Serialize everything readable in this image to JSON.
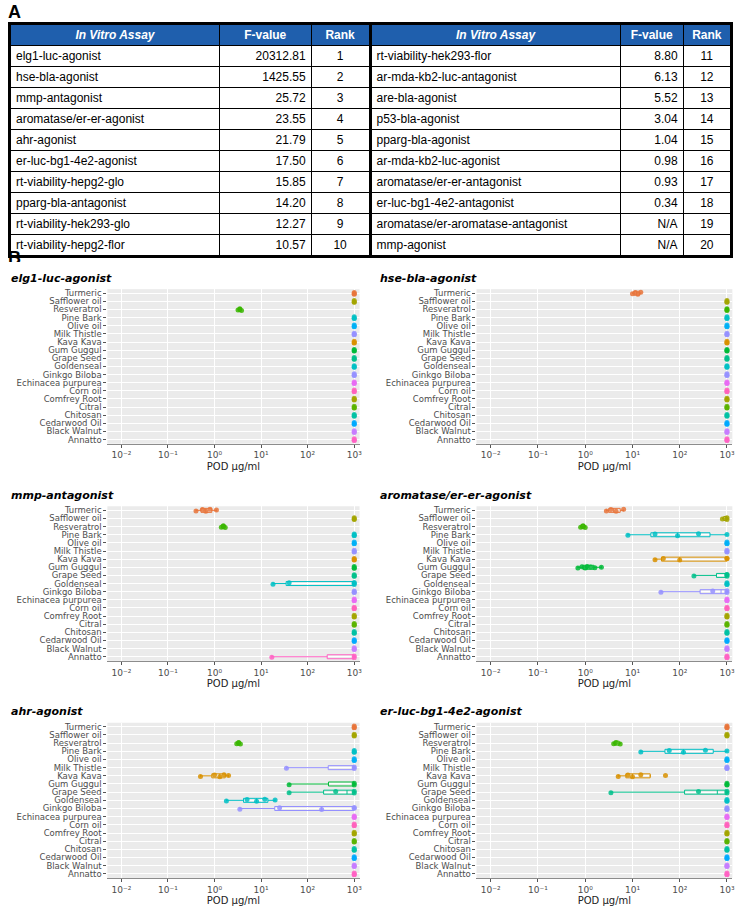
{
  "panel_A": {
    "label": "A",
    "columns": [
      "In Vitro Assay",
      "F-value",
      "Rank"
    ],
    "rows": [
      [
        "elg1-luc-agonist",
        20312.81,
        1
      ],
      [
        "hse-bla-agonist",
        1425.55,
        2
      ],
      [
        "mmp-antagonist",
        25.72,
        3
      ],
      [
        "aromatase/er-er-agonist",
        23.55,
        4
      ],
      [
        "ahr-agonist",
        21.79,
        5
      ],
      [
        "er-luc-bg1-4e2-agonist",
        17.5,
        6
      ],
      [
        "rt-viability-hepg2-glo",
        15.85,
        7
      ],
      [
        "pparg-bla-antagonist",
        14.2,
        8
      ],
      [
        "rt-viability-hek293-glo",
        12.27,
        9
      ],
      [
        "rt-viability-hepg2-flor",
        10.57,
        10
      ],
      [
        "rt-viability-hek293-flor",
        8.8,
        11
      ],
      [
        "ar-mda-kb2-luc-antagonist",
        6.13,
        12
      ],
      [
        "are-bla-agonist",
        5.52,
        13
      ],
      [
        "p53-bla-agonist",
        3.04,
        14
      ],
      [
        "pparg-bla-agonist",
        1.04,
        15
      ],
      [
        "ar-mda-kb2-luc-agonist",
        0.98,
        16
      ],
      [
        "aromatase/er-er-antagonist",
        0.93,
        17
      ],
      [
        "er-luc-bg1-4e2-antagonist",
        0.34,
        18
      ],
      [
        "aromatase/er-aromatase-antagonist",
        "N/A",
        19
      ],
      [
        "mmp-agonist",
        "N/A",
        20
      ]
    ]
  },
  "panel_B_label": "B",
  "chart_data": [
    {
      "type": "box",
      "title": "elg1-luc-agonist",
      "xlabel": "POD µg/ml",
      "log": "x",
      "grid": true,
      "marker": "circle",
      "xlim": [
        0.005,
        1300
      ],
      "xticks": [
        {
          "value": 0.01,
          "label": "10⁻²"
        },
        {
          "value": 0.1,
          "label": "10⁻¹"
        },
        {
          "value": 1,
          "label": "10⁰"
        },
        {
          "value": 10,
          "label": "10¹"
        },
        {
          "value": 100,
          "label": "10²"
        },
        {
          "value": 1000,
          "label": "10³"
        }
      ],
      "categories": [
        "Turmeric",
        "Safflower oil",
        "Resveratrol",
        "Pine Bark",
        "Olive oil",
        "Milk Thistle",
        "Kava Kava",
        "Gum Guggul",
        "Grape Seed",
        "Goldenseal",
        "Ginkgo Biloba",
        "Echinacea purpurea",
        "Corn oil",
        "Comfrey Root",
        "Citral",
        "Chitosan",
        "Cedarwood Oil",
        "Black Walnut",
        "Annatto"
      ],
      "colors": [
        "#E8743B",
        "#A3A500",
        "#39B600",
        "#00BFC4",
        "#00B0F6",
        "#9590FF",
        "#D89000",
        "#00BA38",
        "#00C08B",
        "#00BFC4",
        "#9590FF",
        "#E76BF3",
        "#FF62BC",
        "#A3A500",
        "#5BB300",
        "#00C1A3",
        "#00A9FF",
        "#C77CFF",
        "#FF61C3"
      ],
      "values": [
        [
          1000,
          1000,
          1000
        ],
        [
          1000,
          1000,
          1000
        ],
        [
          3.2,
          3.5,
          3.8
        ],
        [
          1000,
          1000,
          1000
        ],
        [
          1000,
          1000,
          1000
        ],
        [
          1000,
          1000,
          1000
        ],
        [
          1000,
          1000,
          1000
        ],
        [
          1000,
          1000,
          1000
        ],
        [
          1000,
          1000,
          1000
        ],
        [
          1000,
          1000,
          1000
        ],
        [
          1000,
          1000,
          1000
        ],
        [
          1000,
          1000,
          1000
        ],
        [
          1000,
          1000,
          1000
        ],
        [
          1000,
          1000,
          1000
        ],
        [
          1000,
          1000,
          1000
        ],
        [
          1000,
          1000,
          1000
        ],
        [
          1000,
          1000,
          1000
        ],
        [
          1000,
          1000,
          1000
        ],
        [
          1000,
          1000,
          1000
        ]
      ]
    },
    {
      "type": "box",
      "title": "hse-bla-agonist",
      "xlabel": "POD µg/ml",
      "log": "x",
      "grid": true,
      "marker": "circle",
      "xlim": [
        0.005,
        1300
      ],
      "xticks": [
        {
          "value": 0.01,
          "label": "10⁻²"
        },
        {
          "value": 0.1,
          "label": "10⁻¹"
        },
        {
          "value": 1,
          "label": "10⁰"
        },
        {
          "value": 10,
          "label": "10¹"
        },
        {
          "value": 100,
          "label": "10²"
        },
        {
          "value": 1000,
          "label": "10³"
        }
      ],
      "categories": [
        "Turmeric",
        "Safflower oil",
        "Resveratrol",
        "Pine Bark",
        "Olive oil",
        "Milk Thistle",
        "Kava Kava",
        "Gum Guggul",
        "Grape Seed",
        "Goldenseal",
        "Ginkgo Biloba",
        "Echinacea purpurea",
        "Corn oil",
        "Comfrey Root",
        "Citral",
        "Chitosan",
        "Cedarwood Oil",
        "Black Walnut",
        "Annatto"
      ],
      "colors": [
        "#E8743B",
        "#A3A500",
        "#39B600",
        "#00BFC4",
        "#00B0F6",
        "#9590FF",
        "#D89000",
        "#00BA38",
        "#00C08B",
        "#00BFC4",
        "#9590FF",
        "#E76BF3",
        "#FF62BC",
        "#A3A500",
        "#5BB300",
        "#00C1A3",
        "#00A9FF",
        "#C77CFF",
        "#FF61C3"
      ],
      "values": [
        [
          10,
          11.5,
          13,
          15
        ],
        [
          1000,
          1000,
          1000
        ],
        [
          1000,
          1000,
          1000
        ],
        [
          1000,
          1000,
          1000
        ],
        [
          1000,
          1000,
          1000
        ],
        [
          1000,
          1000,
          1000
        ],
        [
          1000,
          1000,
          1000
        ],
        [
          1000,
          1000,
          1000
        ],
        [
          1000,
          1000,
          1000
        ],
        [
          1000,
          1000,
          1000
        ],
        [
          1000,
          1000,
          1000
        ],
        [
          1000,
          1000,
          1000
        ],
        [
          1000,
          1000,
          1000
        ],
        [
          1000,
          1000,
          1000
        ],
        [
          1000,
          1000,
          1000
        ],
        [
          1000,
          1000,
          1000
        ],
        [
          1000,
          1000,
          1000
        ],
        [
          1000,
          1000,
          1000
        ],
        [
          1000,
          1000,
          1000
        ]
      ]
    },
    {
      "type": "box",
      "title": "mmp-antagonist",
      "xlabel": "POD µg/ml",
      "log": "x",
      "grid": true,
      "marker": "circle",
      "xlim": [
        0.005,
        1300
      ],
      "xticks": [
        {
          "value": 0.01,
          "label": "10⁻²"
        },
        {
          "value": 0.1,
          "label": "10⁻¹"
        },
        {
          "value": 1,
          "label": "10⁰"
        },
        {
          "value": 10,
          "label": "10¹"
        },
        {
          "value": 100,
          "label": "10²"
        },
        {
          "value": 1000,
          "label": "10³"
        }
      ],
      "categories": [
        "Turmeric",
        "Safflower oil",
        "Resveratrol",
        "Pine Bark",
        "Olive oil",
        "Milk Thistle",
        "Kava Kava",
        "Gum Guggul",
        "Grape Seed",
        "Goldenseal",
        "Ginkgo Biloba",
        "Echinacea purpurea",
        "Corn oil",
        "Comfrey Root",
        "Citral",
        "Chitosan",
        "Cedarwood Oil",
        "Black Walnut",
        "Annatto"
      ],
      "colors": [
        "#E8743B",
        "#A3A500",
        "#39B600",
        "#00BFC4",
        "#00B0F6",
        "#9590FF",
        "#D89000",
        "#00BA38",
        "#00C08B",
        "#00BFC4",
        "#9590FF",
        "#E76BF3",
        "#FF62BC",
        "#A3A500",
        "#5BB300",
        "#00C1A3",
        "#00A9FF",
        "#C77CFF",
        "#FF61C3"
      ],
      "values": [
        [
          0.4,
          0.55,
          0.65,
          0.8,
          1.1
        ],
        [
          1000,
          1000,
          1000
        ],
        [
          1.4,
          1.55,
          1.7
        ],
        [
          1000,
          1000,
          1000
        ],
        [
          1000,
          1000,
          1000
        ],
        [
          1000,
          1000,
          1000
        ],
        [
          1000,
          1000,
          1000
        ],
        [
          1000,
          1000,
          1000
        ],
        [
          1000,
          1000,
          1000
        ],
        [
          18,
          40,
          1000,
          1000,
          1000
        ],
        [
          1000,
          1000,
          1000
        ],
        [
          1000,
          1000,
          1000
        ],
        [
          1000,
          1000,
          1000
        ],
        [
          1000,
          1000,
          1000
        ],
        [
          1000,
          1000,
          1000
        ],
        [
          1000,
          1000,
          1000
        ],
        [
          1000,
          1000,
          1000
        ],
        [
          1000,
          1000,
          1000
        ],
        [
          17,
          1000,
          1000
        ]
      ]
    },
    {
      "type": "box",
      "title": "aromatase/er-er-agonist",
      "xlabel": "POD µg/ml",
      "log": "x",
      "grid": true,
      "marker": "circle",
      "xlim": [
        0.005,
        1300
      ],
      "xticks": [
        {
          "value": 0.01,
          "label": "10⁻²"
        },
        {
          "value": 0.1,
          "label": "10⁻¹"
        },
        {
          "value": 1,
          "label": "10⁰"
        },
        {
          "value": 10,
          "label": "10¹"
        },
        {
          "value": 100,
          "label": "10²"
        },
        {
          "value": 1000,
          "label": "10³"
        }
      ],
      "categories": [
        "Turmeric",
        "Safflower oil",
        "Resveratrol",
        "Pine Bark",
        "Olive oil",
        "Milk Thistle",
        "Kava Kava",
        "Gum Guggul",
        "Grape Seed",
        "Goldenseal",
        "Ginkgo Biloba",
        "Echinacea purpurea",
        "Corn oil",
        "Comfrey Root",
        "Citral",
        "Chitosan",
        "Cedarwood Oil",
        "Black Walnut",
        "Annatto"
      ],
      "colors": [
        "#E8743B",
        "#A3A500",
        "#39B600",
        "#00BFC4",
        "#00B0F6",
        "#9590FF",
        "#D89000",
        "#00BA38",
        "#00C08B",
        "#00BFC4",
        "#9590FF",
        "#E76BF3",
        "#FF62BC",
        "#A3A500",
        "#5BB300",
        "#00C1A3",
        "#00A9FF",
        "#C77CFF",
        "#FF61C3"
      ],
      "values": [
        [
          2.8,
          3.5,
          4.5,
          6.5
        ],
        [
          800,
          1000,
          1000
        ],
        [
          0.8,
          0.9,
          1.0
        ],
        [
          8,
          30,
          90,
          250,
          1000
        ],
        [
          1000,
          1000,
          1000
        ],
        [
          1000,
          1000,
          1000
        ],
        [
          30,
          45,
          100,
          1000,
          1000
        ],
        [
          0.7,
          0.85,
          1.0,
          1.1,
          1.3,
          1.6,
          2.2
        ],
        [
          200,
          1000,
          1000,
          1000
        ],
        [
          1000,
          1000,
          1000
        ],
        [
          40,
          500,
          1000,
          1000
        ],
        [
          1000,
          1000,
          1000
        ],
        [
          1000,
          1000,
          1000
        ],
        [
          1000,
          1000,
          1000
        ],
        [
          1000,
          1000,
          1000
        ],
        [
          1000,
          1000,
          1000
        ],
        [
          1000,
          1000,
          1000
        ],
        [
          1000,
          1000,
          1000
        ],
        [
          1000,
          1000,
          1000
        ]
      ]
    },
    {
      "type": "box",
      "title": "ahr-agonist",
      "xlabel": "POD µg/ml",
      "log": "x",
      "grid": true,
      "marker": "circle",
      "xlim": [
        0.005,
        1300
      ],
      "xticks": [
        {
          "value": 0.01,
          "label": "10⁻²"
        },
        {
          "value": 0.1,
          "label": "10⁻¹"
        },
        {
          "value": 1,
          "label": "10⁰"
        },
        {
          "value": 10,
          "label": "10¹"
        },
        {
          "value": 100,
          "label": "10²"
        },
        {
          "value": 1000,
          "label": "10³"
        }
      ],
      "categories": [
        "Turmeric",
        "Safflower oil",
        "Resveratrol",
        "Pine Bark",
        "Olive oil",
        "Milk Thistle",
        "Kava Kava",
        "Gum Guggul",
        "Grape Seed",
        "Goldenseal",
        "Ginkgo Biloba",
        "Echinacea purpurea",
        "Corn oil",
        "Comfrey Root",
        "Citral",
        "Chitosan",
        "Cedarwood Oil",
        "Black Walnut",
        "Annatto"
      ],
      "colors": [
        "#E8743B",
        "#A3A500",
        "#39B600",
        "#00BFC4",
        "#00B0F6",
        "#9590FF",
        "#D89000",
        "#00BA38",
        "#00C08B",
        "#00BFC4",
        "#9590FF",
        "#E76BF3",
        "#FF62BC",
        "#A3A500",
        "#5BB300",
        "#00C1A3",
        "#00A9FF",
        "#C77CFF",
        "#FF61C3"
      ],
      "values": [
        [
          1000,
          1000,
          1000
        ],
        [
          1000,
          1000,
          1000
        ],
        [
          3,
          3.3,
          3.6
        ],
        [
          1000,
          1000,
          1000
        ],
        [
          1000,
          1000,
          1000
        ],
        [
          35,
          1000,
          1000
        ],
        [
          0.5,
          1.0,
          1.3,
          1.6,
          2.0
        ],
        [
          40,
          1000,
          1000
        ],
        [
          40,
          400,
          1000,
          1000
        ],
        [
          1.8,
          5,
          8,
          12,
          20
        ],
        [
          3.5,
          25,
          200,
          1000,
          1000
        ],
        [
          1000,
          1000,
          1000
        ],
        [
          1000,
          1000,
          1000
        ],
        [
          1000,
          1000,
          1000
        ],
        [
          1000,
          1000,
          1000
        ],
        [
          1000,
          1000,
          1000
        ],
        [
          1000,
          1000,
          1000
        ],
        [
          1000,
          1000,
          1000
        ],
        [
          1000,
          1000,
          1000
        ]
      ]
    },
    {
      "type": "box",
      "title": "er-luc-bg1-4e2-agonist",
      "xlabel": "POD µg/ml",
      "log": "x",
      "grid": true,
      "marker": "circle",
      "xlim": [
        0.005,
        1300
      ],
      "xticks": [
        {
          "value": 0.01,
          "label": "10⁻²"
        },
        {
          "value": 0.1,
          "label": "10⁻¹"
        },
        {
          "value": 1,
          "label": "10⁰"
        },
        {
          "value": 10,
          "label": "10¹"
        },
        {
          "value": 100,
          "label": "10²"
        },
        {
          "value": 1000,
          "label": "10³"
        }
      ],
      "categories": [
        "Turmeric",
        "Safflower oil",
        "Resveratrol",
        "Pine Bark",
        "Olive oil",
        "Milk Thistle",
        "Kava Kava",
        "Gum Guggul",
        "Grape Seed",
        "Goldenseal",
        "Ginkgo Biloba",
        "Echinacea purpurea",
        "Corn oil",
        "Comfrey Root",
        "Citral",
        "Chitosan",
        "Cedarwood Oil",
        "Black Walnut",
        "Annatto"
      ],
      "colors": [
        "#E8743B",
        "#A3A500",
        "#39B600",
        "#00BFC4",
        "#00B0F6",
        "#9590FF",
        "#D89000",
        "#00BA38",
        "#00C08B",
        "#00BFC4",
        "#9590FF",
        "#E76BF3",
        "#FF62BC",
        "#A3A500",
        "#5BB300",
        "#00C1A3",
        "#00A9FF",
        "#C77CFF",
        "#FF61C3"
      ],
      "values": [
        [
          1000,
          1000,
          1000
        ],
        [
          1000,
          1000,
          1000
        ],
        [
          4,
          4.5,
          5.5
        ],
        [
          15,
          60,
          120,
          350,
          1000
        ],
        [
          1000,
          1000,
          1000
        ],
        [
          1000,
          1000,
          1000
        ],
        [
          5,
          8,
          10,
          15,
          50
        ],
        [
          1000,
          1000,
          1000
        ],
        [
          3.5,
          250,
          1000,
          1000
        ],
        [
          1000,
          1000,
          1000
        ],
        [
          1000,
          1000,
          1000
        ],
        [
          1000,
          1000,
          1000
        ],
        [
          1000,
          1000,
          1000
        ],
        [
          1000,
          1000,
          1000
        ],
        [
          1000,
          1000,
          1000
        ],
        [
          1000,
          1000,
          1000
        ],
        [
          1000,
          1000,
          1000
        ],
        [
          1000,
          1000,
          1000
        ],
        [
          1000,
          1000,
          1000
        ]
      ]
    }
  ]
}
